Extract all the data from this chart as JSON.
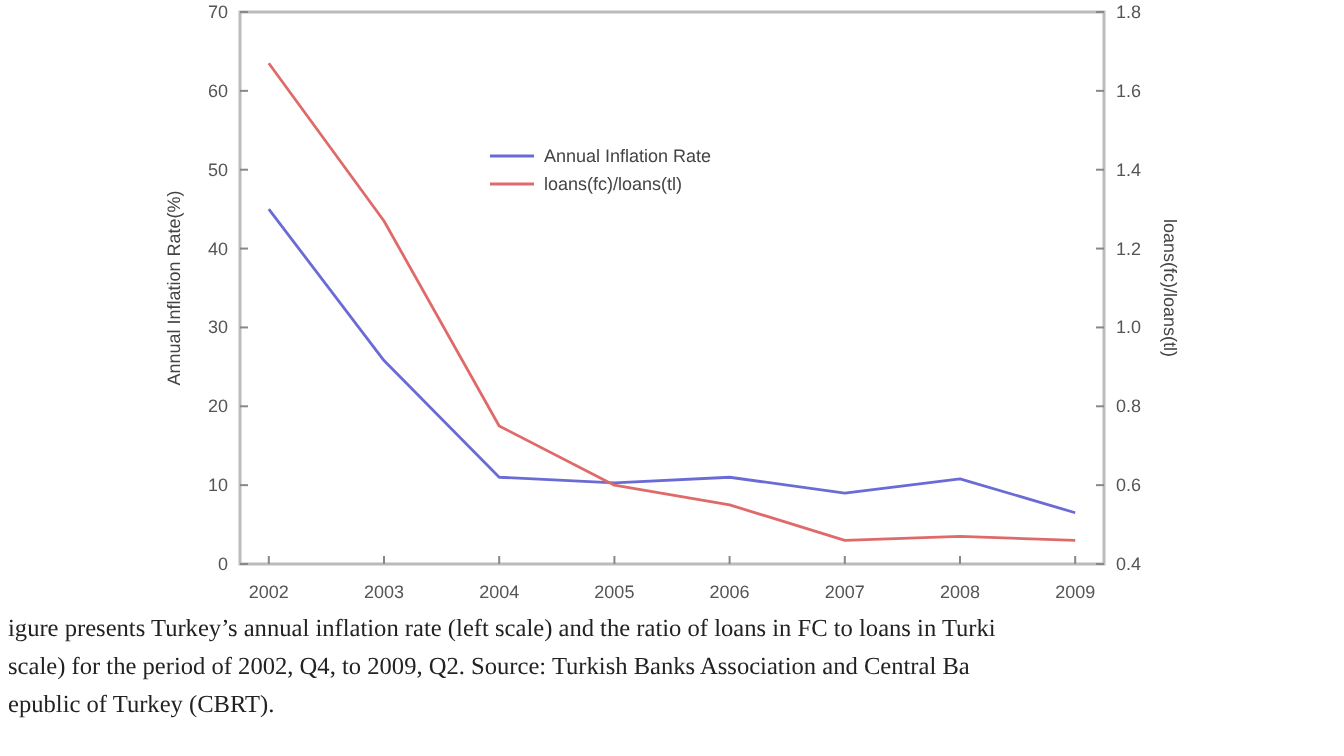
{
  "chart_data": {
    "type": "line",
    "ylabel": "Annual Inflation Rate(%)",
    "y2label": "loans(fc)/loans(tl)",
    "x": [
      2002,
      2003,
      2004,
      2005,
      2006,
      2007,
      2008,
      2009
    ],
    "series": [
      {
        "name": "Annual Inflation Rate",
        "color": "#6b6bd6",
        "values": [
          45,
          25.8,
          11,
          10.3,
          11,
          9,
          10.8,
          6.5
        ]
      },
      {
        "name": "loans(fc)/loans(tl)",
        "color": "#e06a6a",
        "axis": "y2",
        "values": [
          1.67,
          1.27,
          0.75,
          0.6,
          0.55,
          0.46,
          0.47,
          0.46
        ]
      }
    ],
    "xlim": [
      2001.75,
      2009.25
    ],
    "xticks": [
      2002,
      2003,
      2004,
      2005,
      2006,
      2007,
      2008,
      2009
    ],
    "ylim": [
      0,
      70
    ],
    "yticks": [
      0,
      10,
      20,
      30,
      40,
      50,
      60,
      70
    ],
    "y2lim": [
      0.4,
      1.8
    ],
    "y2ticks": [
      {
        "value": 0.4,
        "label": "0.4"
      },
      {
        "value": 0.6,
        "label": "0.6"
      },
      {
        "value": 0.8,
        "label": "0.8"
      },
      {
        "value": 1,
        "label": "1.0"
      },
      {
        "value": 1.2,
        "label": "1.2"
      },
      {
        "value": 1.4,
        "label": "1.4"
      },
      {
        "value": 1.6,
        "label": "1.6"
      },
      {
        "value": 1.8,
        "label": "1.8"
      }
    ],
    "grid": false,
    "legend": "top",
    "marker": "none",
    "line_style": "solid",
    "annotations": [
      "igure presents Turkey’s annual inflation rate (left scale) and the ratio of loans in FC to loans in Turki",
      "scale) for the period of 2002, Q4, to 2009, Q2.  Source: Turkish Banks Association and Central Ba",
      "epublic of Turkey (CBRT)."
    ]
  }
}
